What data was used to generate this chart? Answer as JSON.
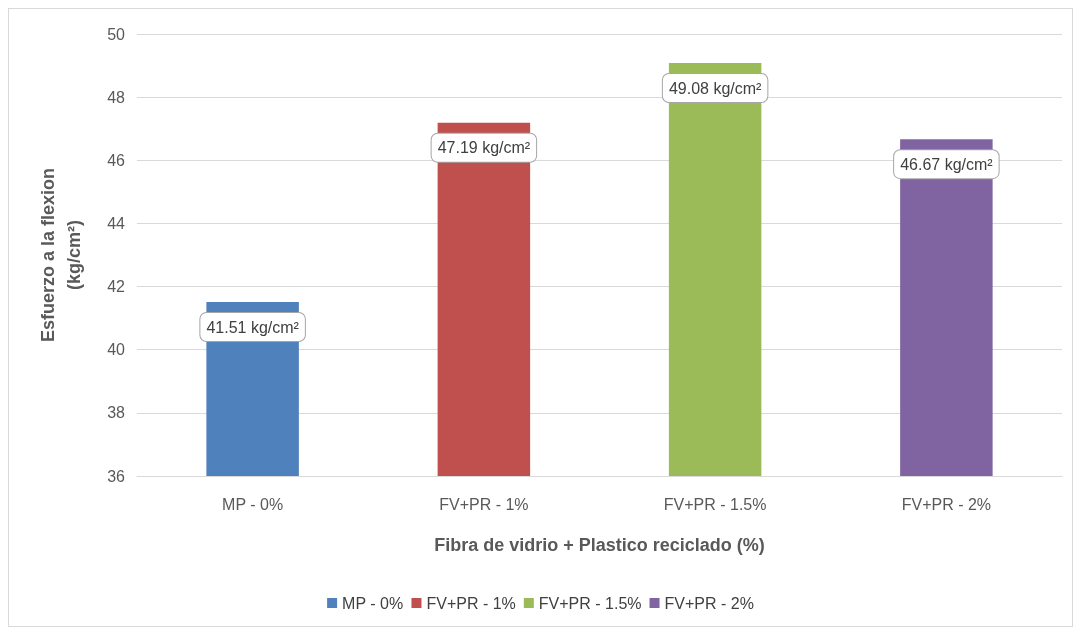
{
  "chart_data": {
    "type": "bar",
    "xlabel": "Fibra de vidrio + Plastico reciclado (%)",
    "ylabel": "Esfuerzo a la flexion\n(kg/cm²)",
    "categories": [
      "MP - 0%",
      "FV+PR - 1%",
      "FV+PR - 1.5%",
      "FV+PR - 2%"
    ],
    "series": [
      {
        "name": "MP - 0%",
        "color": "#4f81bd",
        "values": [
          41.51,
          null,
          null,
          null
        ],
        "value_labels": [
          "41.51 kg/cm²",
          null,
          null,
          null
        ]
      },
      {
        "name": "FV+PR - 1%",
        "color": "#c0504d",
        "values": [
          null,
          47.19,
          null,
          null
        ],
        "value_labels": [
          null,
          "47.19 kg/cm²",
          null,
          null
        ]
      },
      {
        "name": "FV+PR - 1.5%",
        "color": "#9bbb59",
        "values": [
          null,
          null,
          49.08,
          null
        ],
        "value_labels": [
          null,
          null,
          "49.08 kg/cm²",
          null
        ]
      },
      {
        "name": "FV+PR - 2%",
        "color": "#8064a2",
        "values": [
          null,
          null,
          null,
          46.67
        ],
        "value_labels": [
          null,
          null,
          null,
          "46.67 kg/cm²"
        ]
      }
    ],
    "stacked": true,
    "ylim": [
      36,
      50
    ],
    "yticks": [
      36,
      38,
      40,
      42,
      44,
      46,
      48,
      50
    ],
    "grid": "y",
    "legend": "bottom"
  }
}
